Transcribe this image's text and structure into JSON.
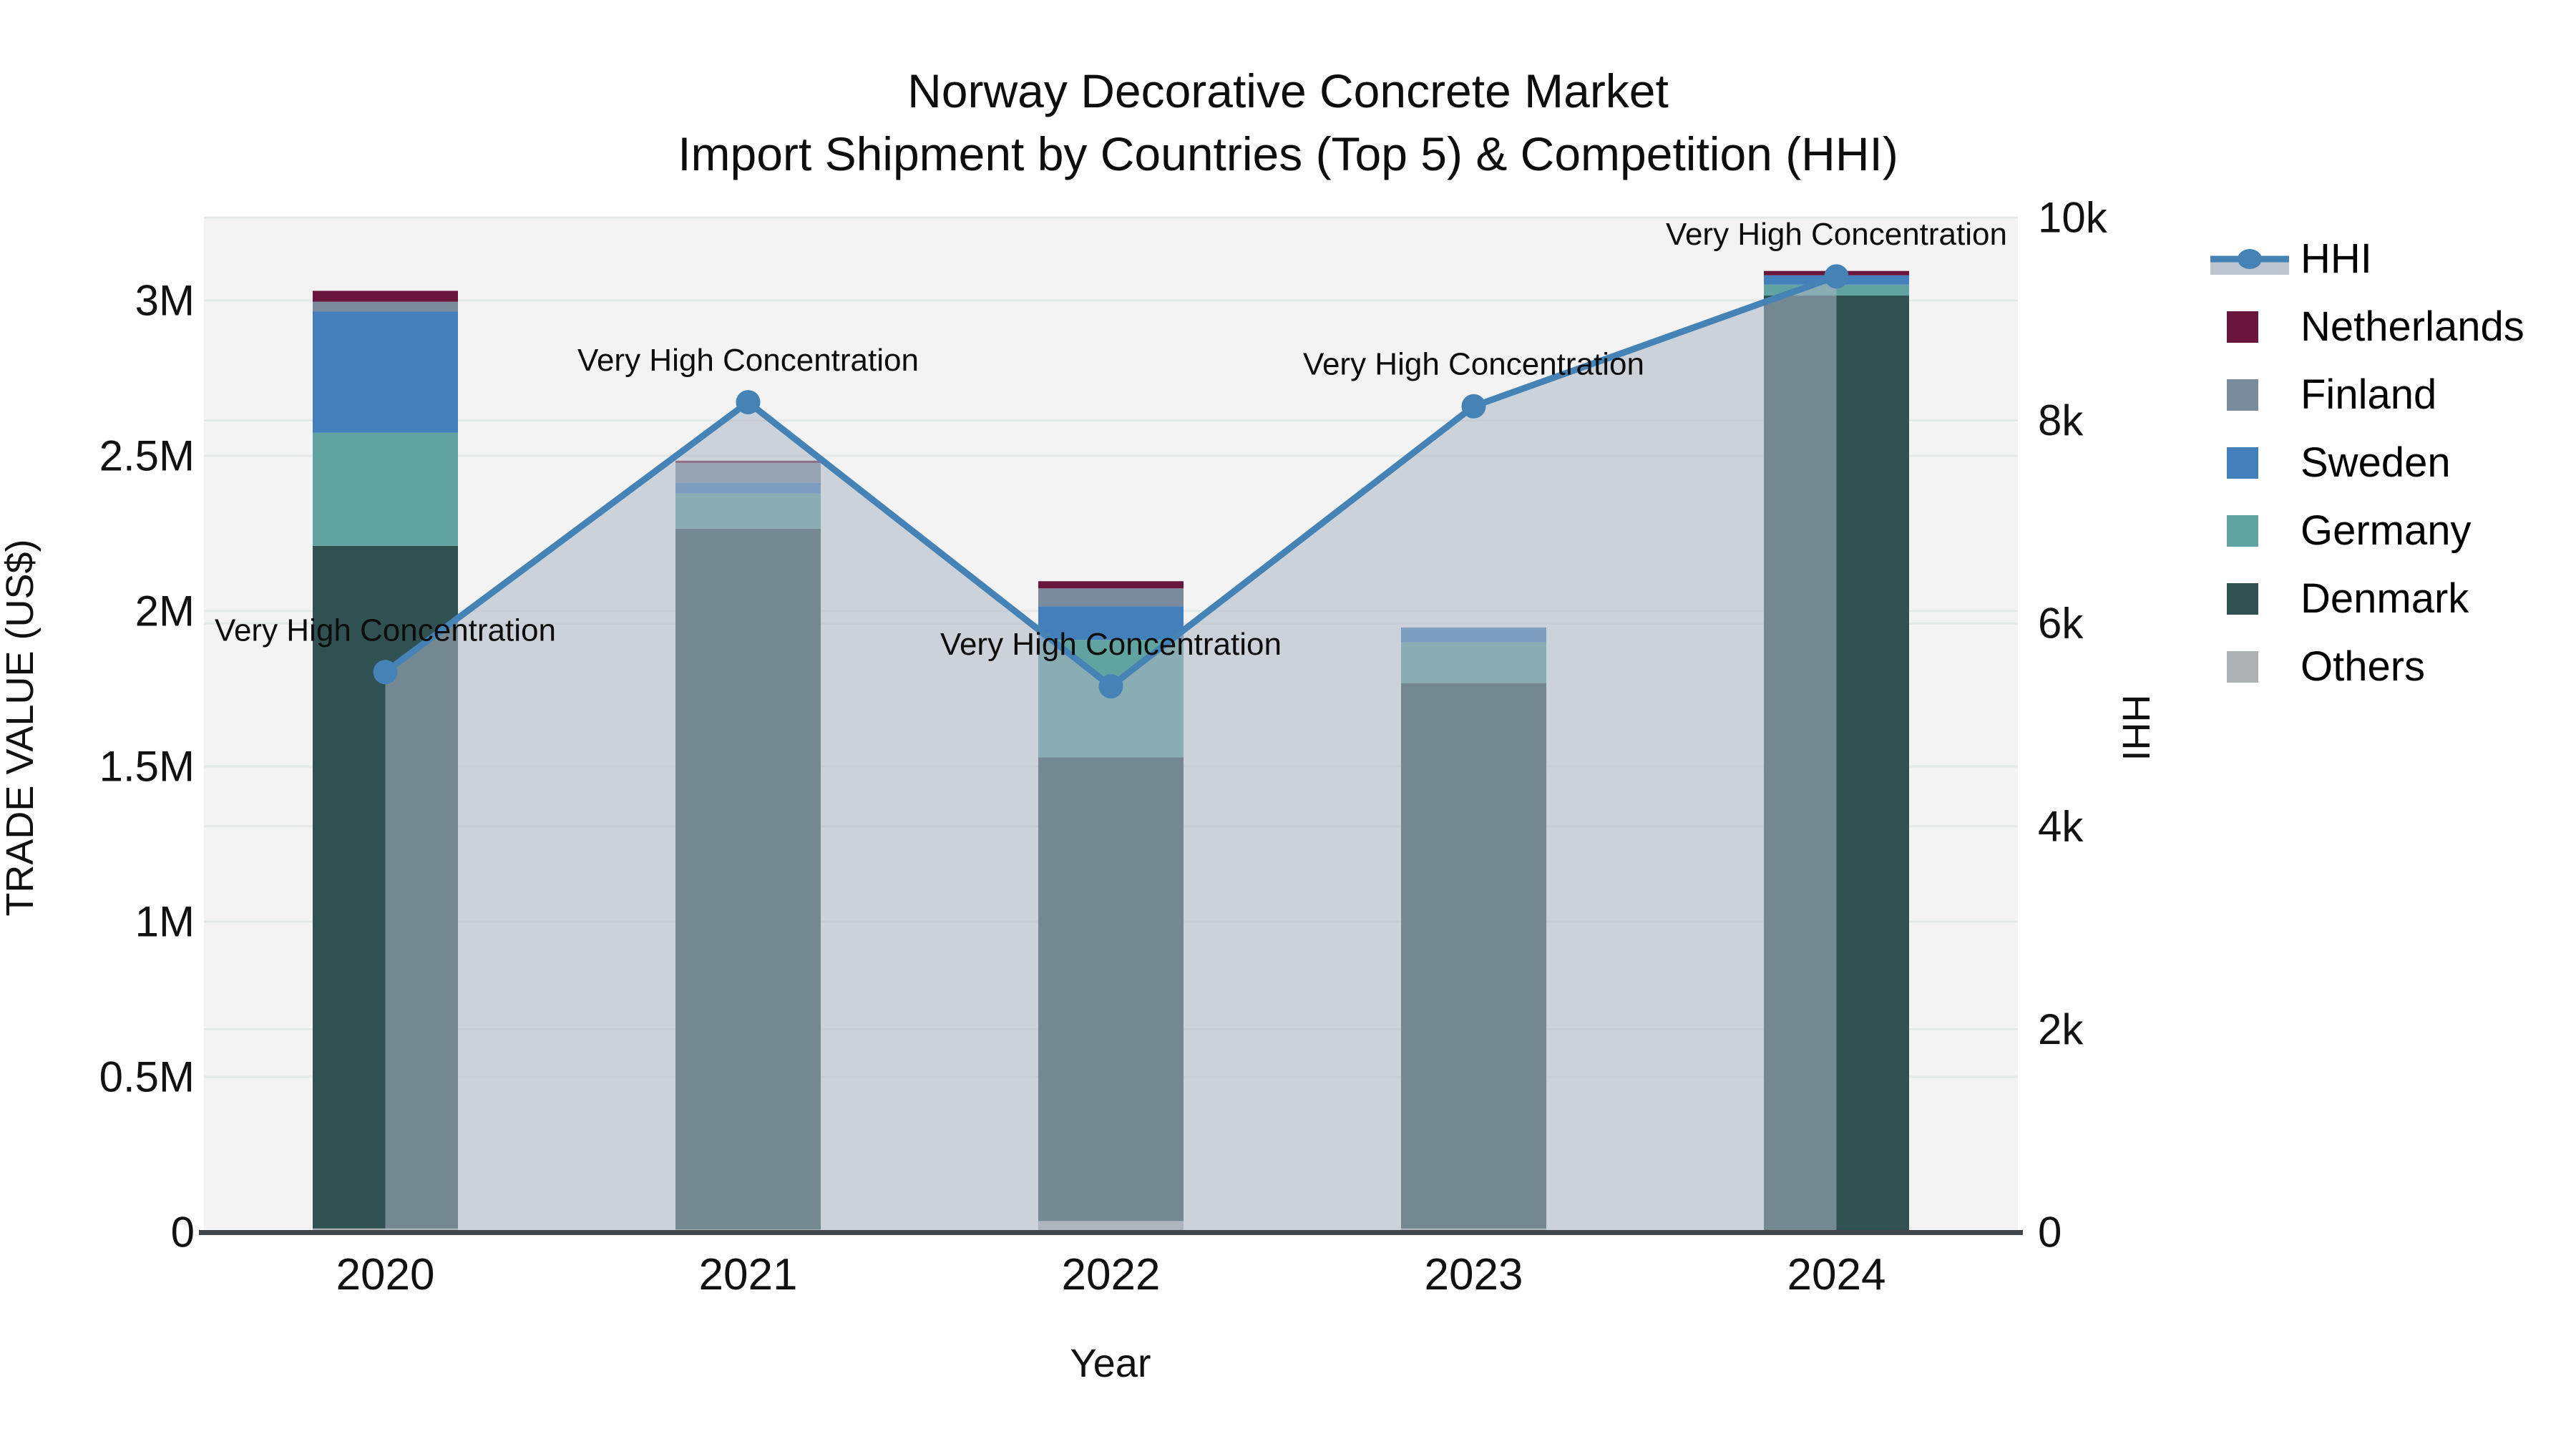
{
  "title": {
    "line1": "Norway Decorative Concrete Market",
    "line2": "Import Shipment by Countries (Top 5) & Competition (HHI)"
  },
  "axes": {
    "x": {
      "title": "Year",
      "ticks": [
        "2020",
        "2021",
        "2022",
        "2023",
        "2024"
      ]
    },
    "y_left": {
      "title": "TRADE VALUE (US$)",
      "ticks": [
        {
          "label": "0",
          "value": 0
        },
        {
          "label": "0.5M",
          "value": 500000
        },
        {
          "label": "1M",
          "value": 1000000
        },
        {
          "label": "1.5M",
          "value": 1500000
        },
        {
          "label": "2M",
          "value": 2000000
        },
        {
          "label": "2.5M",
          "value": 2500000
        },
        {
          "label": "3M",
          "value": 3000000
        }
      ],
      "range": [
        0,
        3267000
      ]
    },
    "y_right": {
      "title": "HHI",
      "ticks": [
        {
          "label": "0",
          "value": 0
        },
        {
          "label": "2k",
          "value": 2000
        },
        {
          "label": "4k",
          "value": 4000
        },
        {
          "label": "6k",
          "value": 6000
        },
        {
          "label": "8k",
          "value": 8000
        },
        {
          "label": "10k",
          "value": 10000
        }
      ],
      "range": [
        0,
        10000
      ]
    }
  },
  "legend": [
    {
      "label": "HHI",
      "type": "line",
      "color": "#4583B7"
    },
    {
      "label": "Netherlands",
      "type": "square",
      "color": "#6A163C"
    },
    {
      "label": "Finland",
      "type": "square",
      "color": "#7A8C9C"
    },
    {
      "label": "Sweden",
      "type": "square",
      "color": "#4380BB"
    },
    {
      "label": "Germany",
      "type": "square",
      "color": "#61A3A0"
    },
    {
      "label": "Denmark",
      "type": "square",
      "color": "#2F5152"
    },
    {
      "label": "Others",
      "type": "square",
      "color": "#ADB1B3"
    }
  ],
  "chart_data": {
    "type": "combo-stacked-bar-line",
    "title": "Norway Decorative Concrete Market — Import Shipment by Countries (Top 5) & Competition (HHI)",
    "xlabel": "Year",
    "ylabel_left": "TRADE VALUE (US$)",
    "ylabel_right": "HHI",
    "categories": [
      "2020",
      "2021",
      "2022",
      "2023",
      "2024"
    ],
    "stack_order_bottom_to_top": [
      "Others",
      "Denmark",
      "Germany",
      "Sweden",
      "Finland",
      "Netherlands"
    ],
    "series": [
      {
        "name": "Others",
        "color": "#ADB1B3",
        "values_usd": [
          12000,
          9000,
          36000,
          12000,
          0
        ]
      },
      {
        "name": "Denmark",
        "color": "#2F5152",
        "values_usd": [
          2198000,
          2256000,
          1493000,
          1756000,
          3016000
        ]
      },
      {
        "name": "Germany",
        "color": "#61A3A0",
        "values_usd": [
          364000,
          113000,
          378000,
          131000,
          35000
        ]
      },
      {
        "name": "Sweden",
        "color": "#4380BB",
        "values_usd": [
          390000,
          35000,
          108000,
          48000,
          30000
        ]
      },
      {
        "name": "Finland",
        "color": "#7A8C9C",
        "values_usd": [
          32000,
          64000,
          58000,
          0,
          0
        ]
      },
      {
        "name": "Netherlands",
        "color": "#6A163C",
        "values_usd": [
          35000,
          7000,
          23000,
          0,
          14000
        ]
      }
    ],
    "bar_totals_usd": [
      3031000,
      2484000,
      2096000,
      1947000,
      3095000
    ],
    "line_series": {
      "name": "HHI",
      "color": "#4583B7",
      "fill_color": "rgba(173,182,196,0.55)",
      "values": [
        5520,
        8180,
        5380,
        8140,
        9420
      ]
    },
    "annotations": [
      {
        "text": "Very High Concentration",
        "category": "2020"
      },
      {
        "text": "Very High Concentration",
        "category": "2021"
      },
      {
        "text": "Very High Concentration",
        "category": "2022"
      },
      {
        "text": "Very High Concentration",
        "category": "2023"
      },
      {
        "text": "Very High Concentration",
        "category": "2024"
      }
    ],
    "layout_hints": {
      "plot_bg": "#F2F3F2",
      "grid_color": "#E5E8E8",
      "axis_line_color": "#40464B",
      "legend_position": "right",
      "grid": true
    }
  }
}
